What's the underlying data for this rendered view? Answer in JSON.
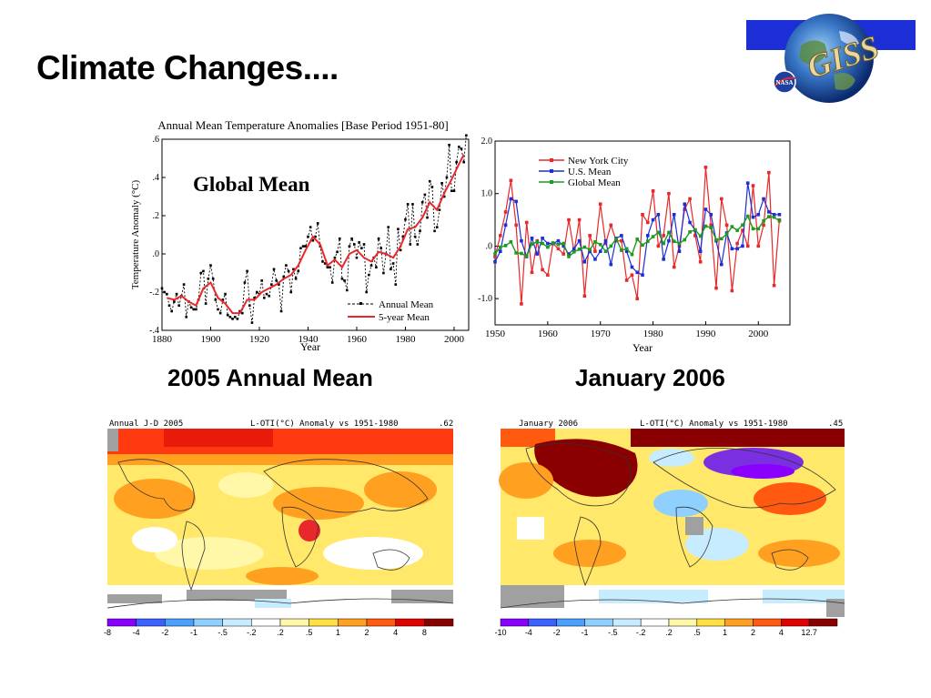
{
  "slide": {
    "title": "Climate Changes....",
    "logo_text": "GISS",
    "logo_small": "NASA",
    "subtitle_left": "2005 Annual Mean",
    "subtitle_right": "January 2006"
  },
  "colors": {
    "nyc": "#e8282a",
    "us": "#1c2fd6",
    "global": "#1e9a1e",
    "annual": "#000000",
    "five_year": "#e8282a"
  },
  "chart_data": [
    {
      "type": "line",
      "title": "Annual Mean Temperature Anomalies [Base Period 1951-80]",
      "panel_label": "Global Mean",
      "xlabel": "Year",
      "ylabel": "Temperature Anomaly (°C)",
      "xlim": [
        1880,
        2006
      ],
      "ylim": [
        -0.4,
        0.6
      ],
      "xticks": [
        1880,
        1900,
        1920,
        1940,
        1960,
        1980,
        2000
      ],
      "yticks": [
        ".6",
        ".4",
        ".2",
        ".0",
        "-.2",
        "-.4"
      ],
      "ytick_values": [
        0.6,
        0.4,
        0.2,
        0.0,
        -0.2,
        -0.4
      ],
      "legend_position": "bottom-right",
      "grid": false,
      "series": [
        {
          "name": "Annual Mean",
          "x": [
            1880,
            1881,
            1882,
            1883,
            1884,
            1885,
            1886,
            1887,
            1888,
            1889,
            1890,
            1891,
            1892,
            1893,
            1894,
            1895,
            1896,
            1897,
            1898,
            1899,
            1900,
            1901,
            1902,
            1903,
            1904,
            1905,
            1906,
            1907,
            1908,
            1909,
            1910,
            1911,
            1912,
            1913,
            1914,
            1915,
            1916,
            1917,
            1918,
            1919,
            1920,
            1921,
            1922,
            1923,
            1924,
            1925,
            1926,
            1927,
            1928,
            1929,
            1930,
            1931,
            1932,
            1933,
            1934,
            1935,
            1936,
            1937,
            1938,
            1939,
            1940,
            1941,
            1942,
            1943,
            1944,
            1945,
            1946,
            1947,
            1948,
            1949,
            1950,
            1951,
            1952,
            1953,
            1954,
            1955,
            1956,
            1957,
            1958,
            1959,
            1960,
            1961,
            1962,
            1963,
            1964,
            1965,
            1966,
            1967,
            1968,
            1969,
            1970,
            1971,
            1972,
            1973,
            1974,
            1975,
            1976,
            1977,
            1978,
            1979,
            1980,
            1981,
            1982,
            1983,
            1984,
            1985,
            1986,
            1987,
            1988,
            1989,
            1990,
            1991,
            1992,
            1993,
            1994,
            1995,
            1996,
            1997,
            1998,
            1999,
            2000,
            2001,
            2002,
            2003,
            2004,
            2005
          ],
          "values": [
            -0.18,
            -0.2,
            -0.21,
            -0.27,
            -0.3,
            -0.25,
            -0.21,
            -0.27,
            -0.22,
            -0.16,
            -0.33,
            -0.25,
            -0.28,
            -0.29,
            -0.29,
            -0.24,
            -0.1,
            -0.09,
            -0.26,
            -0.13,
            -0.06,
            -0.13,
            -0.24,
            -0.29,
            -0.31,
            -0.24,
            -0.21,
            -0.32,
            -0.33,
            -0.34,
            -0.33,
            -0.34,
            -0.3,
            -0.31,
            -0.15,
            -0.09,
            -0.27,
            -0.36,
            -0.23,
            -0.2,
            -0.21,
            -0.14,
            -0.23,
            -0.21,
            -0.22,
            -0.16,
            -0.08,
            -0.14,
            -0.16,
            -0.3,
            -0.12,
            -0.06,
            -0.09,
            -0.2,
            -0.08,
            -0.13,
            -0.09,
            0.03,
            0.04,
            0.04,
            0.09,
            0.14,
            0.07,
            0.09,
            0.16,
            0.04,
            -0.04,
            -0.05,
            -0.07,
            -0.07,
            -0.15,
            -0.02,
            0.01,
            0.08,
            -0.13,
            -0.14,
            -0.19,
            0.04,
            0.08,
            0.05,
            -0.02,
            0.06,
            0.03,
            0.05,
            -0.2,
            -0.11,
            -0.06,
            -0.02,
            -0.07,
            0.08,
            0.03,
            -0.1,
            0.0,
            0.14,
            -0.08,
            -0.05,
            -0.16,
            0.13,
            0.02,
            0.09,
            0.18,
            0.26,
            0.05,
            0.26,
            0.09,
            0.05,
            0.12,
            0.27,
            0.31,
            0.19,
            0.38,
            0.35,
            0.12,
            0.14,
            0.23,
            0.37,
            0.3,
            0.4,
            0.57,
            0.33,
            0.33,
            0.48,
            0.56,
            0.55,
            0.48,
            0.62
          ]
        },
        {
          "name": "5-year Mean",
          "x": [
            1882,
            1885,
            1888,
            1891,
            1894,
            1897,
            1900,
            1903,
            1906,
            1909,
            1912,
            1915,
            1918,
            1921,
            1924,
            1927,
            1930,
            1933,
            1936,
            1939,
            1942,
            1945,
            1948,
            1951,
            1954,
            1957,
            1960,
            1963,
            1966,
            1969,
            1972,
            1975,
            1978,
            1981,
            1984,
            1987,
            1990,
            1993,
            1996,
            1999,
            2002,
            2004
          ],
          "values": [
            -0.23,
            -0.24,
            -0.22,
            -0.25,
            -0.27,
            -0.18,
            -0.15,
            -0.23,
            -0.26,
            -0.31,
            -0.31,
            -0.24,
            -0.24,
            -0.2,
            -0.18,
            -0.16,
            -0.13,
            -0.11,
            -0.06,
            0.02,
            0.09,
            0.05,
            -0.06,
            -0.03,
            -0.07,
            0.0,
            0.02,
            -0.02,
            -0.04,
            0.01,
            0.0,
            -0.02,
            0.04,
            0.13,
            0.14,
            0.19,
            0.27,
            0.23,
            0.32,
            0.39,
            0.47,
            0.52
          ]
        }
      ]
    },
    {
      "type": "line",
      "xlabel": "Year",
      "ylabel": "",
      "xlim": [
        1950,
        2006
      ],
      "ylim": [
        -1.5,
        2.0
      ],
      "xticks": [
        1950,
        1960,
        1970,
        1980,
        1990,
        2000
      ],
      "yticks": [
        "2.0",
        "1.0",
        ".0",
        "-1.0"
      ],
      "ytick_values": [
        2.0,
        1.0,
        0.0,
        -1.0
      ],
      "legend_position": "top-left",
      "grid": false,
      "series": [
        {
          "name": "New York City",
          "x": [
            1950,
            1951,
            1952,
            1953,
            1954,
            1955,
            1956,
            1957,
            1958,
            1959,
            1960,
            1961,
            1962,
            1963,
            1964,
            1965,
            1966,
            1967,
            1968,
            1969,
            1970,
            1971,
            1972,
            1973,
            1974,
            1975,
            1976,
            1977,
            1978,
            1979,
            1980,
            1981,
            1982,
            1983,
            1984,
            1985,
            1986,
            1987,
            1988,
            1989,
            1990,
            1991,
            1992,
            1993,
            1994,
            1995,
            1996,
            1997,
            1998,
            1999,
            2000,
            2001,
            2002,
            2003,
            2004
          ],
          "values": [
            -0.2,
            0.2,
            0.65,
            1.25,
            0.4,
            -1.1,
            0.45,
            -0.5,
            0.1,
            -0.45,
            -0.55,
            0.05,
            -0.05,
            -0.15,
            0.5,
            -0.1,
            0.5,
            -0.95,
            0.2,
            -0.1,
            0.8,
            0.05,
            0.4,
            0.1,
            0.1,
            -0.65,
            -0.55,
            -1.0,
            0.6,
            0.45,
            1.05,
            0.0,
            0.2,
            1.0,
            -0.4,
            0.0,
            0.7,
            0.9,
            0.2,
            -0.3,
            1.5,
            0.4,
            -0.8,
            0.9,
            0.4,
            -0.85,
            0.05,
            0.3,
            0.0,
            1.15,
            0.0,
            0.4,
            1.4,
            -0.75,
            0.5
          ]
        },
        {
          "name": "U.S. Mean",
          "x": [
            1950,
            1951,
            1952,
            1953,
            1954,
            1955,
            1956,
            1957,
            1958,
            1959,
            1960,
            1961,
            1962,
            1963,
            1964,
            1965,
            1966,
            1967,
            1968,
            1969,
            1970,
            1971,
            1972,
            1973,
            1974,
            1975,
            1976,
            1977,
            1978,
            1979,
            1980,
            1981,
            1982,
            1983,
            1984,
            1985,
            1986,
            1987,
            1988,
            1989,
            1990,
            1991,
            1992,
            1993,
            1994,
            1995,
            1996,
            1997,
            1998,
            1999,
            2000,
            2001,
            2002,
            2003,
            2004
          ],
          "values": [
            -0.3,
            -0.1,
            0.4,
            0.9,
            0.85,
            0.1,
            -0.2,
            0.15,
            -0.15,
            0.15,
            0.05,
            0.05,
            0.1,
            0.0,
            -0.15,
            -0.05,
            0.1,
            -0.3,
            -0.1,
            -0.25,
            -0.1,
            0.1,
            -0.35,
            0.15,
            0.2,
            -0.1,
            -0.4,
            -0.5,
            -0.55,
            0.2,
            0.5,
            0.6,
            -0.25,
            0.1,
            0.6,
            -0.1,
            0.8,
            0.45,
            0.3,
            -0.1,
            0.7,
            0.6,
            0.1,
            -0.35,
            0.25,
            -0.05,
            -0.05,
            0.0,
            1.2,
            0.55,
            0.6,
            0.9,
            0.65,
            0.6,
            0.6
          ]
        },
        {
          "name": "Global Mean",
          "x": [
            1950,
            1951,
            1952,
            1953,
            1954,
            1955,
            1956,
            1957,
            1958,
            1959,
            1960,
            1961,
            1962,
            1963,
            1964,
            1965,
            1966,
            1967,
            1968,
            1969,
            1970,
            1971,
            1972,
            1973,
            1974,
            1975,
            1976,
            1977,
            1978,
            1979,
            1980,
            1981,
            1982,
            1983,
            1984,
            1985,
            1986,
            1987,
            1988,
            1989,
            1990,
            1991,
            1992,
            1993,
            1994,
            1995,
            1996,
            1997,
            1998,
            1999,
            2000,
            2001,
            2002,
            2003,
            2004
          ],
          "values": [
            -0.15,
            -0.02,
            0.01,
            0.08,
            -0.13,
            -0.14,
            -0.19,
            0.04,
            0.08,
            0.05,
            -0.02,
            0.06,
            0.03,
            0.05,
            -0.2,
            -0.11,
            -0.06,
            -0.02,
            -0.07,
            0.08,
            0.03,
            -0.1,
            0.0,
            0.14,
            -0.08,
            -0.05,
            -0.16,
            0.13,
            0.02,
            0.09,
            0.18,
            0.26,
            0.05,
            0.26,
            0.09,
            0.05,
            0.12,
            0.27,
            0.31,
            0.19,
            0.38,
            0.35,
            0.12,
            0.14,
            0.23,
            0.37,
            0.3,
            0.4,
            0.57,
            0.33,
            0.33,
            0.48,
            0.56,
            0.55,
            0.48
          ]
        }
      ]
    },
    {
      "type": "heatmap",
      "header_left": "Annual J-D 2005",
      "header_mid": "L-OTI(°C) Anomaly vs 1951-1980",
      "header_right": ".62",
      "colorbar_ticks": [
        "-8",
        "-4",
        "-2",
        "-1",
        "-.5",
        "-.2",
        ".2",
        ".5",
        "1",
        "2",
        "4",
        "8"
      ],
      "colorbar_colors": [
        "#8a00ff",
        "#3a60ff",
        "#4aa0ff",
        "#90d0ff",
        "#c8ecff",
        "#ffffff",
        "#fff8a8",
        "#ffe040",
        "#ffa020",
        "#ff5a10",
        "#e00000",
        "#8a0000"
      ]
    },
    {
      "type": "heatmap",
      "header_left": "January 2006",
      "header_mid": "L-OTI(°C) Anomaly vs 1951-1980",
      "header_right": ".45",
      "colorbar_ticks": [
        "-10",
        "-4",
        "-2",
        "-1",
        "-.5",
        "-.2",
        ".2",
        ".5",
        "1",
        "2",
        "4",
        "12.7"
      ],
      "colorbar_colors": [
        "#8a00ff",
        "#3a60ff",
        "#4aa0ff",
        "#90d0ff",
        "#c8ecff",
        "#ffffff",
        "#fff8a8",
        "#ffe040",
        "#ffa020",
        "#ff5a10",
        "#e00000",
        "#8a0000"
      ]
    }
  ]
}
